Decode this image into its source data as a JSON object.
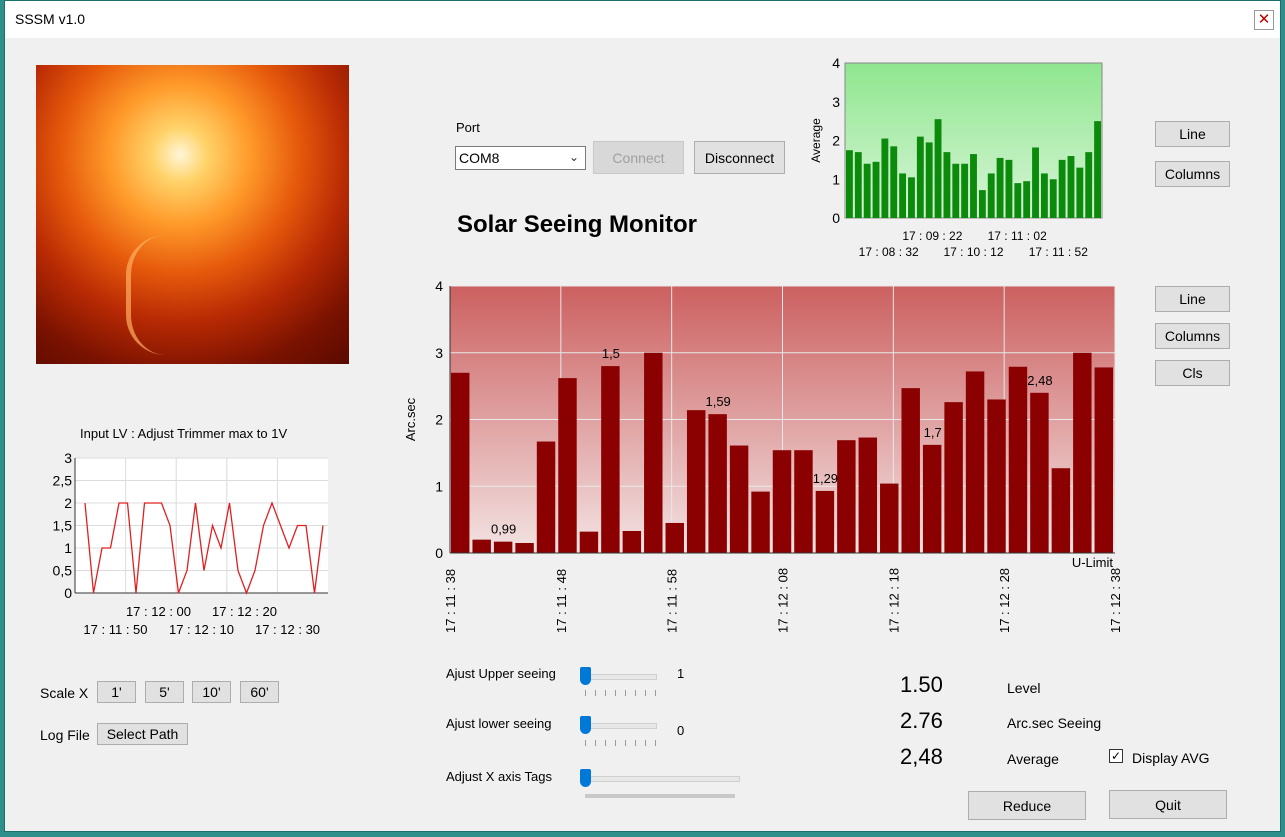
{
  "window": {
    "title": "SSSM v1.0",
    "close_label": "✕"
  },
  "port": {
    "label": "Port",
    "selected": "COM8",
    "connect_label": "Connect",
    "disconnect_label": "Disconnect"
  },
  "heading": "Solar Seeing  Monitor",
  "top_buttons": {
    "line": "Line",
    "columns": "Columns"
  },
  "main_buttons": {
    "line": "Line",
    "columns": "Columns",
    "cls": "Cls"
  },
  "input_chart_title": "Input LV : Adjust Trimmer max to 1V",
  "scale": {
    "label": "Scale X",
    "buttons": [
      "1'",
      "5'",
      "10'",
      "60'"
    ]
  },
  "log": {
    "label": "Log File",
    "button": "Select Path"
  },
  "sliders": [
    {
      "label": "Ajust Upper seeing",
      "value": "1"
    },
    {
      "label": "Ajust lower seeing",
      "value": "0"
    },
    {
      "label": "Adjust X  axis Tags",
      "value": ""
    }
  ],
  "readouts": [
    {
      "value": "1.50",
      "label": "Level"
    },
    {
      "value": "2.76",
      "label": "Arc.sec Seeing"
    },
    {
      "value": "2,48",
      "label": "Average"
    }
  ],
  "display_avg": {
    "label": "Display AVG",
    "checked": true
  },
  "footer": {
    "reduce": "Reduce",
    "quit": "Quit"
  },
  "chart_data": [
    {
      "id": "average",
      "type": "bar",
      "ylabel": "Average",
      "ylim": [
        0,
        4
      ],
      "yticks": [
        "0",
        "1",
        "2",
        "3",
        "4"
      ],
      "bar_color": "#0b8a0b",
      "bg_top": "#8fe68f",
      "bg_bottom": "#d8f5d8",
      "xticks_upper": [
        "17 : 09 : 22",
        "17 : 11 : 02"
      ],
      "xticks_lower": [
        "17 : 08 : 32",
        "17 : 10 : 12",
        "17 : 11 : 52"
      ],
      "values": [
        1.75,
        1.7,
        1.4,
        1.45,
        2.05,
        1.85,
        1.15,
        1.05,
        2.1,
        1.95,
        2.55,
        1.7,
        1.4,
        1.4,
        1.65,
        0.72,
        1.15,
        1.55,
        1.5,
        0.9,
        0.95,
        1.82,
        1.15,
        1.0,
        1.5,
        1.6,
        1.3,
        1.7,
        2.5
      ]
    },
    {
      "id": "seeing",
      "type": "bar",
      "ylabel": "Arc.sec",
      "ylim": [
        0,
        4
      ],
      "yticks": [
        "0",
        "1",
        "2",
        "3",
        "4"
      ],
      "bar_color": "#8b0000",
      "bg_top": "#cc6060",
      "bg_bottom": "#f3e3e3",
      "xticks": [
        "17 : 11 : 38",
        "17 : 11 : 48",
        "17 : 11 : 58",
        "17 : 12 : 08",
        "17 : 12 : 18",
        "17 : 12 : 28",
        "17 : 12 : 38"
      ],
      "limit_label": "U-Limit",
      "values": [
        2.7,
        0.2,
        0.17,
        0.15,
        1.67,
        2.62,
        0.32,
        2.8,
        0.33,
        3.0,
        0.45,
        2.14,
        2.08,
        1.61,
        0.92,
        1.54,
        1.54,
        0.93,
        1.69,
        1.73,
        1.04,
        2.47,
        1.62,
        2.26,
        2.72,
        2.3,
        2.79,
        2.4,
        1.27,
        3.0,
        2.78
      ],
      "annotations": [
        {
          "index": 2,
          "text": "0,99"
        },
        {
          "index": 7,
          "text": "1,5"
        },
        {
          "index": 12,
          "text": "1,59"
        },
        {
          "index": 17,
          "text": "1,29"
        },
        {
          "index": 22,
          "text": "1,7"
        },
        {
          "index": 27,
          "text": "2,48"
        }
      ]
    },
    {
      "id": "input",
      "type": "line",
      "ylim": [
        0,
        3
      ],
      "yticks": [
        "0",
        "0,5",
        "1",
        "1,5",
        "2",
        "2,5",
        "3"
      ],
      "line_color": "#e02020",
      "xticks_upper": [
        "17 : 12 : 00",
        "17 : 12 : 20"
      ],
      "xticks_lower": [
        "17 : 11 : 50",
        "17 : 12 : 10",
        "17 : 12 : 30"
      ],
      "values": [
        2,
        0,
        1,
        1,
        2,
        2,
        0,
        2,
        2,
        2,
        1.5,
        0,
        0.5,
        2,
        0.5,
        1.5,
        1,
        2,
        0.5,
        0,
        0.5,
        1.5,
        2,
        1.5,
        1,
        1.5,
        1.5,
        0,
        1.5
      ]
    }
  ]
}
